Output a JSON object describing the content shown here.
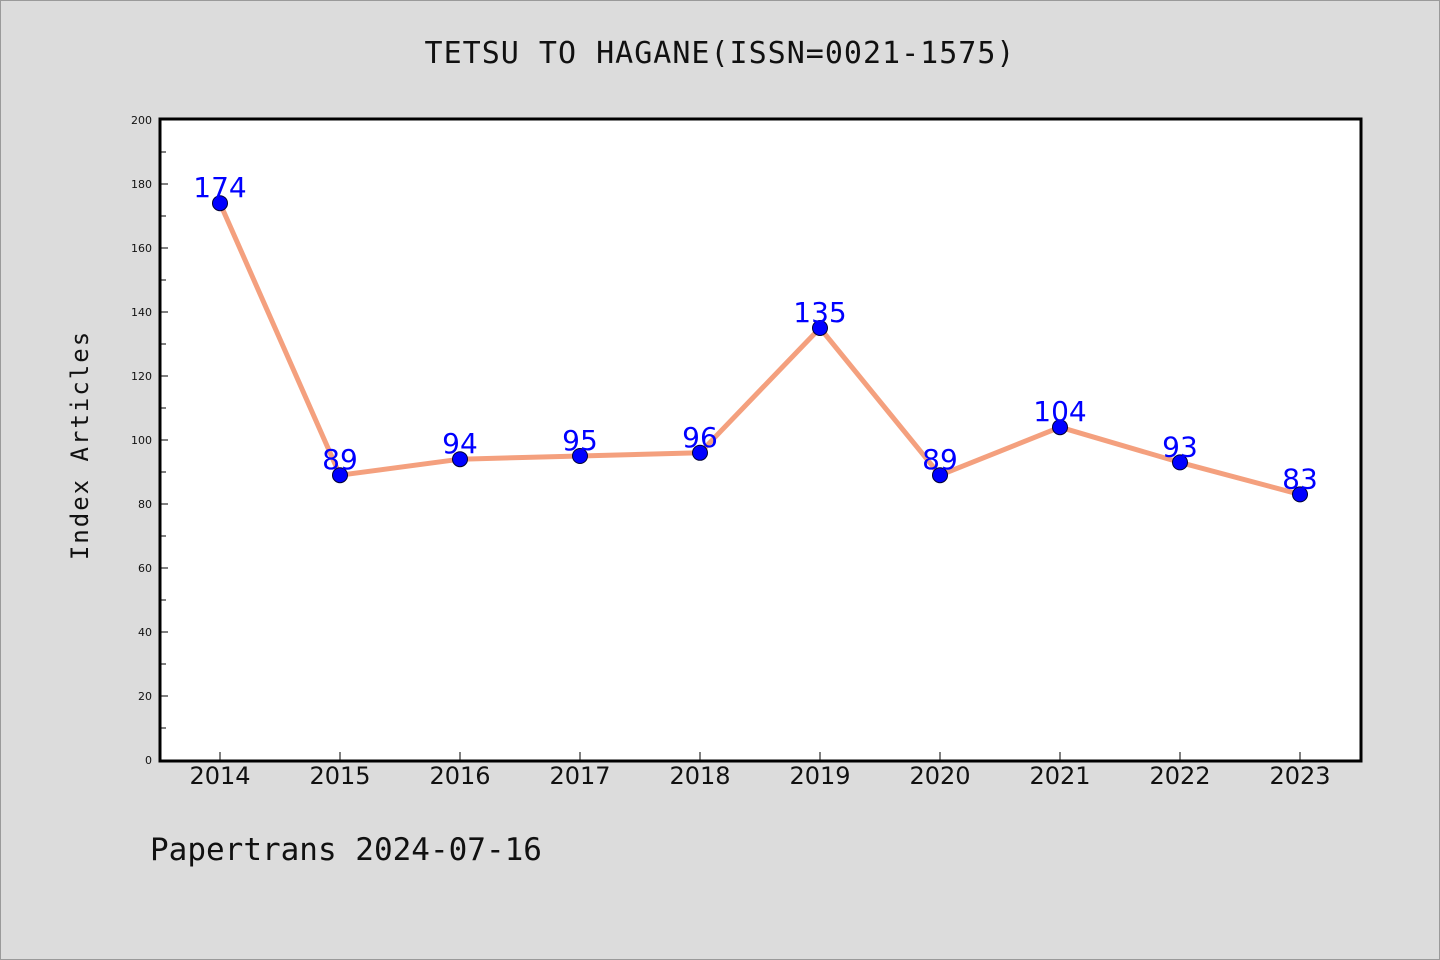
{
  "chart_data": {
    "type": "line",
    "title": "TETSU TO HAGANE(ISSN=0021-1575)",
    "xlabel": "",
    "ylabel": "Index Articles",
    "categories": [
      "2014",
      "2015",
      "2016",
      "2017",
      "2018",
      "2019",
      "2020",
      "2021",
      "2022",
      "2023"
    ],
    "series": [
      {
        "values": [
          174,
          89,
          94,
          95,
          96,
          135,
          89,
          104,
          93,
          83
        ]
      }
    ],
    "ylim": [
      0,
      200
    ],
    "yticks": [
      0,
      20,
      40,
      60,
      80,
      100,
      120,
      140,
      160,
      180,
      200
    ],
    "grid": false,
    "colors": {
      "line": "#f4a07e",
      "marker": "#0000ff",
      "data_label": "#0000ff",
      "plot_background": "#ffffff",
      "page_background": "#dcdcdc"
    }
  },
  "footer": "Papertrans 2024-07-16"
}
